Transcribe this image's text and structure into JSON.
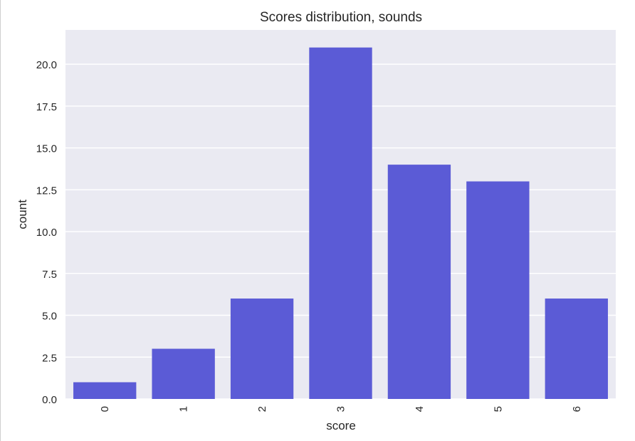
{
  "chart_data": {
    "type": "bar",
    "title": "Scores distribution, sounds",
    "xlabel": "score",
    "ylabel": "count",
    "categories": [
      "0",
      "1",
      "2",
      "3",
      "4",
      "5",
      "6"
    ],
    "values": [
      1,
      3,
      6,
      21,
      14,
      13,
      6
    ],
    "ylim": [
      0,
      22.05
    ],
    "yticks": [
      "0.0",
      "2.5",
      "5.0",
      "7.5",
      "10.0",
      "12.5",
      "15.0",
      "17.5",
      "20.0"
    ],
    "ytick_values": [
      0,
      2.5,
      5,
      7.5,
      10,
      12.5,
      15,
      17.5,
      20
    ],
    "grid": true,
    "x_tick_rotation": "vertical",
    "colors": {
      "bar": "#5b5bd6",
      "plot_background": "#eaeaf2",
      "grid": "#ffffff",
      "text": "#262626"
    }
  }
}
